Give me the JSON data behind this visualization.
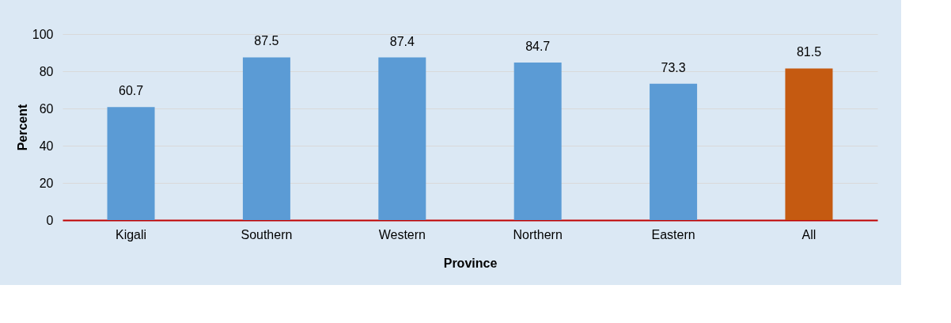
{
  "chart_data": {
    "type": "bar",
    "xlabel": "Province",
    "ylabel": "Percent",
    "categories": [
      "Kigali",
      "Southern",
      "Western",
      "Northern",
      "Eastern",
      "All"
    ],
    "values": [
      60.7,
      87.5,
      87.4,
      84.7,
      73.3,
      81.5
    ],
    "colors": [
      "#5b9bd5",
      "#5b9bd5",
      "#5b9bd5",
      "#5b9bd5",
      "#5b9bd5",
      "#c55a11"
    ],
    "ylim": [
      0,
      100
    ],
    "yticks": [
      0,
      20,
      40,
      60,
      80,
      100
    ],
    "grid": "y",
    "data_labels": true
  }
}
